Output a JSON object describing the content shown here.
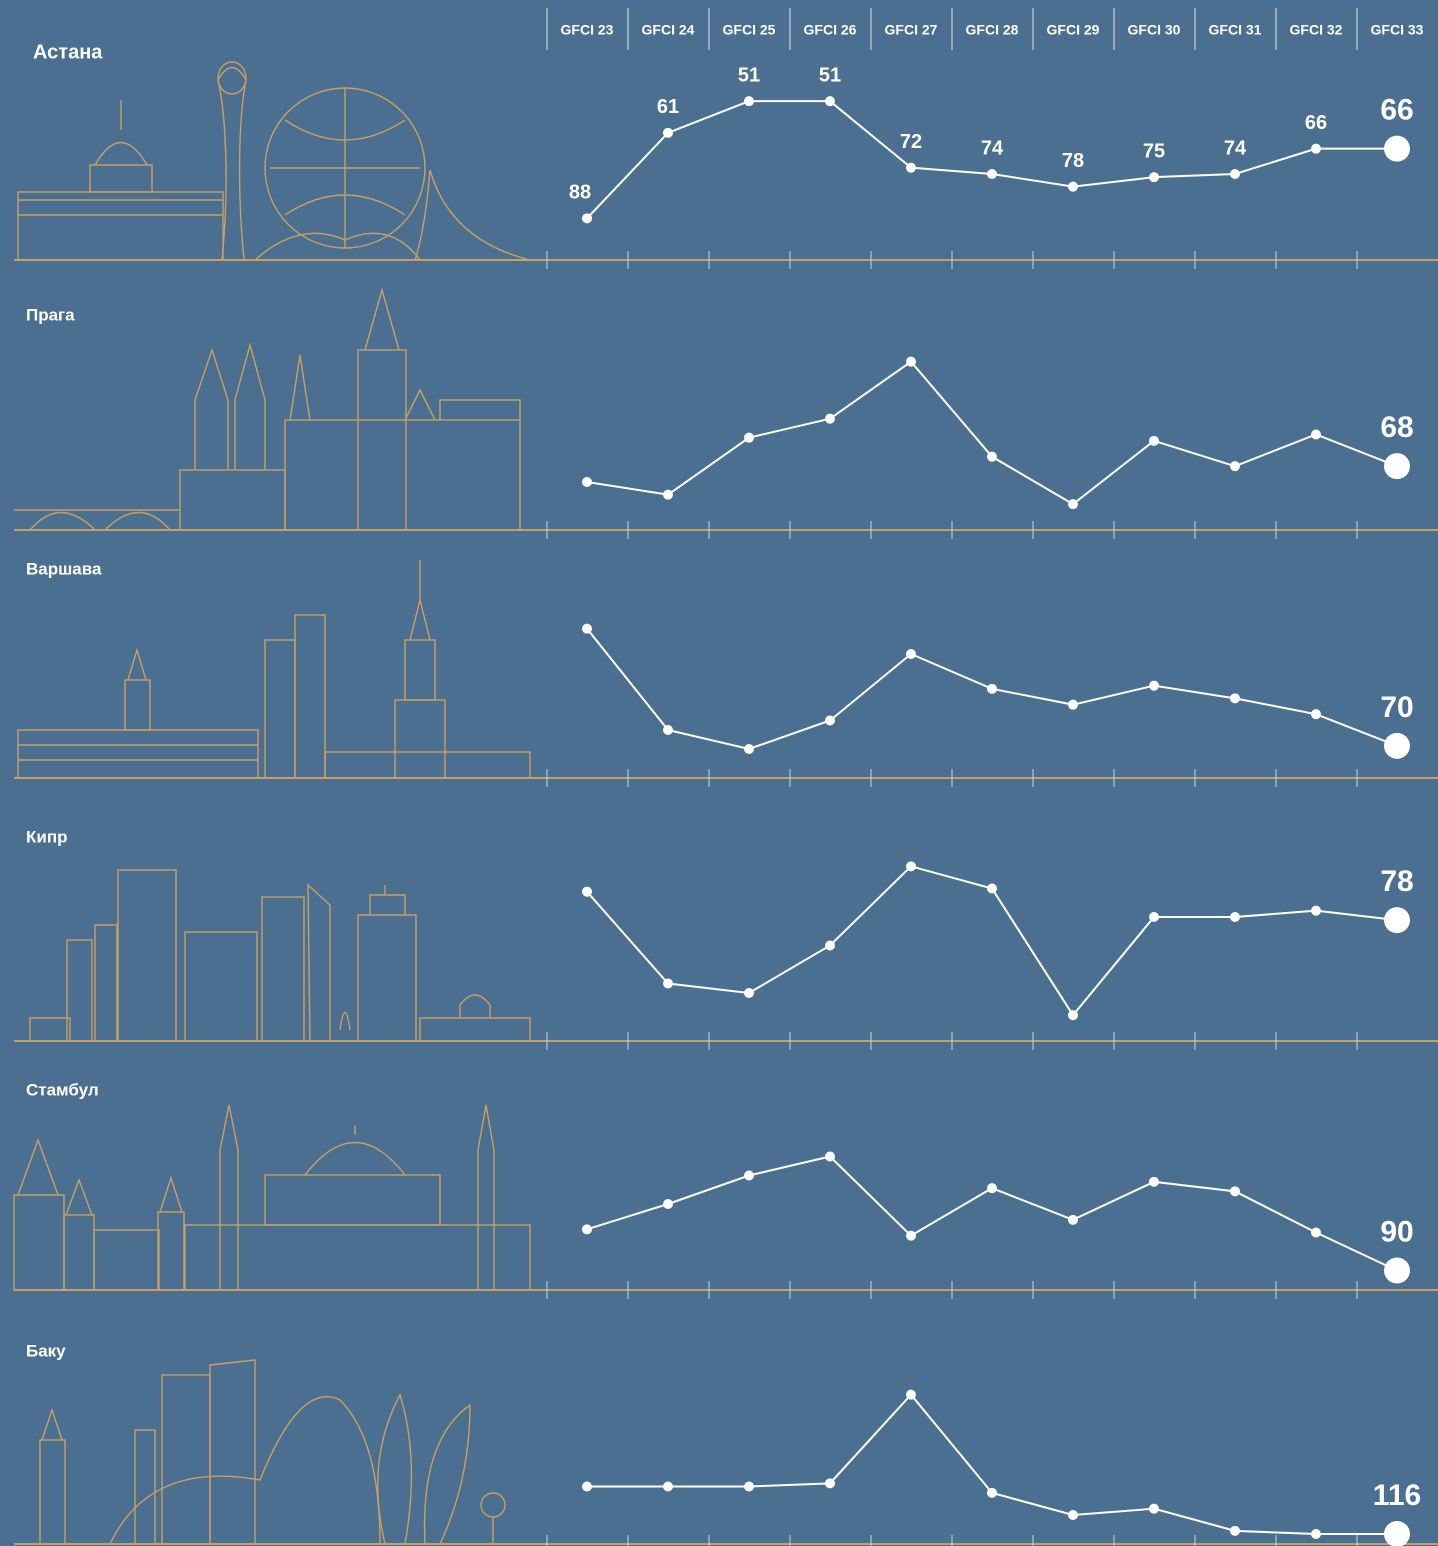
{
  "chart_data": [
    {
      "type": "line",
      "title": "Астана",
      "categories": [
        "GFCI 23",
        "GFCI 24",
        "GFCI 25",
        "GFCI 26",
        "GFCI 27",
        "GFCI 28",
        "GFCI 29",
        "GFCI 30",
        "GFCI 31",
        "GFCI 32",
        "GFCI 33"
      ],
      "values": [
        88,
        61,
        51,
        51,
        72,
        74,
        78,
        75,
        74,
        66,
        66
      ],
      "ylim": [
        38,
        98
      ],
      "invert_y": true,
      "data_labels": "all",
      "color": "#ffffff"
    },
    {
      "type": "line",
      "title": "Прага",
      "values": [
        73,
        77,
        59,
        53,
        35,
        65,
        80,
        60,
        68,
        58,
        68
      ],
      "ylim": [
        25,
        85
      ],
      "invert_y": true,
      "data_labels": "last",
      "color": "#ffffff"
    },
    {
      "type": "line",
      "title": "Варшава",
      "values": [
        33,
        65,
        71,
        62,
        41,
        52,
        57,
        51,
        55,
        60,
        70
      ],
      "ylim": [
        17,
        77
      ],
      "invert_y": true,
      "data_labels": "last",
      "color": "#ffffff"
    },
    {
      "type": "line",
      "title": "Кипр",
      "values": [
        69,
        98,
        101,
        86,
        61,
        68,
        108,
        77,
        77,
        75,
        78
      ],
      "ylim": [
        53,
        113
      ],
      "invert_y": true,
      "data_labels": "last",
      "color": "#ffffff"
    },
    {
      "type": "line",
      "title": "Стамбул",
      "values": [
        77,
        69,
        60,
        54,
        79,
        64,
        74,
        62,
        65,
        78,
        90
      ],
      "ylim": [
        33,
        93
      ],
      "invert_y": true,
      "data_labels": "last",
      "color": "#ffffff"
    },
    {
      "type": "line",
      "title": "Баку",
      "values": [
        101,
        101,
        101,
        100,
        72,
        103,
        110,
        108,
        115,
        116,
        116
      ],
      "ylim": [
        56,
        116
      ],
      "invert_y": true,
      "data_labels": "last",
      "color": "#ffffff"
    }
  ]
}
